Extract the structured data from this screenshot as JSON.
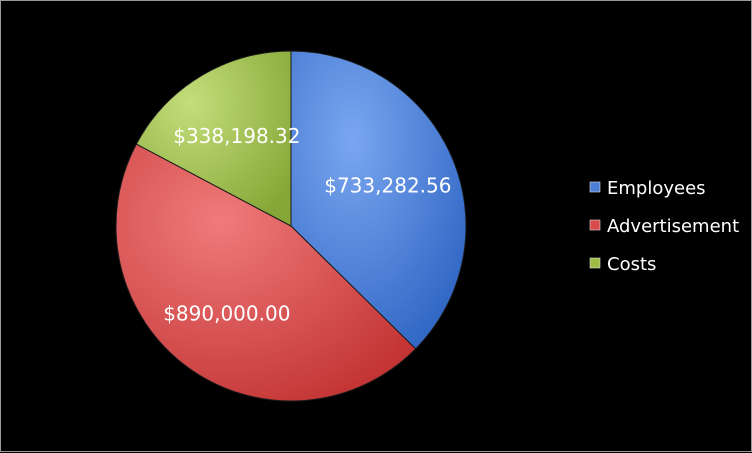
{
  "chart_data": {
    "type": "pie",
    "categories": [
      "Employees",
      "Advertisement",
      "Costs"
    ],
    "values": [
      733282.56,
      890000.0,
      338198.32
    ],
    "data_labels": [
      "$733,282.56",
      "$890,000.00",
      "$338,198.32"
    ],
    "colors": [
      "#4a7ed6",
      "#d94a4a",
      "#9dbd45"
    ],
    "legend": {
      "placement": "right",
      "entries": [
        "Employees",
        "Advertisement",
        "Costs"
      ]
    },
    "start_angle_deg": 0,
    "direction": "clockwise"
  }
}
